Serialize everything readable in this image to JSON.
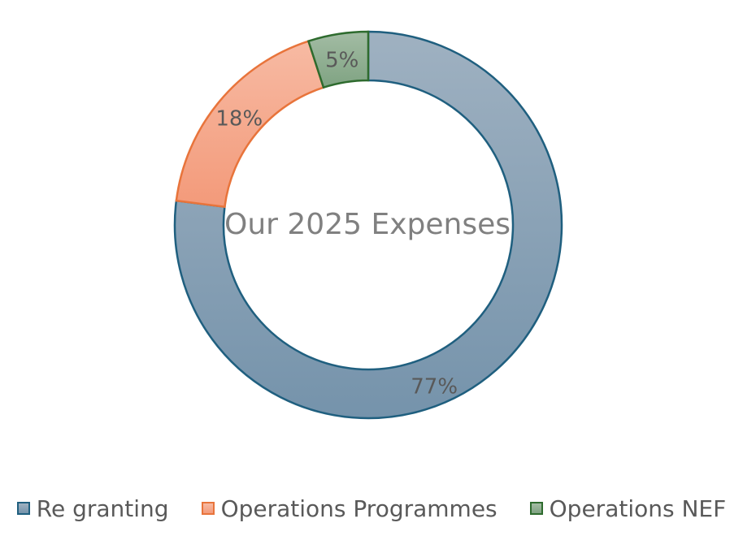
{
  "chart_data": {
    "type": "pie",
    "title": "Our 2025 Expenses",
    "categories": [
      "Re granting",
      "Operations Programmes",
      "Operations NEF"
    ],
    "values": [
      77,
      18,
      5
    ],
    "value_labels": [
      "77%",
      "18%",
      "5%"
    ],
    "legend_position": "bottom",
    "colors": {
      "fill_top": [
        "#9fb1c1",
        "#f7baa3",
        "#a3bca4"
      ],
      "fill_bottom": [
        "#7593ab",
        "#f39a7a",
        "#7fa382"
      ],
      "stroke": [
        "#1f5f7f",
        "#e8743b",
        "#2e6b2e"
      ]
    }
  }
}
